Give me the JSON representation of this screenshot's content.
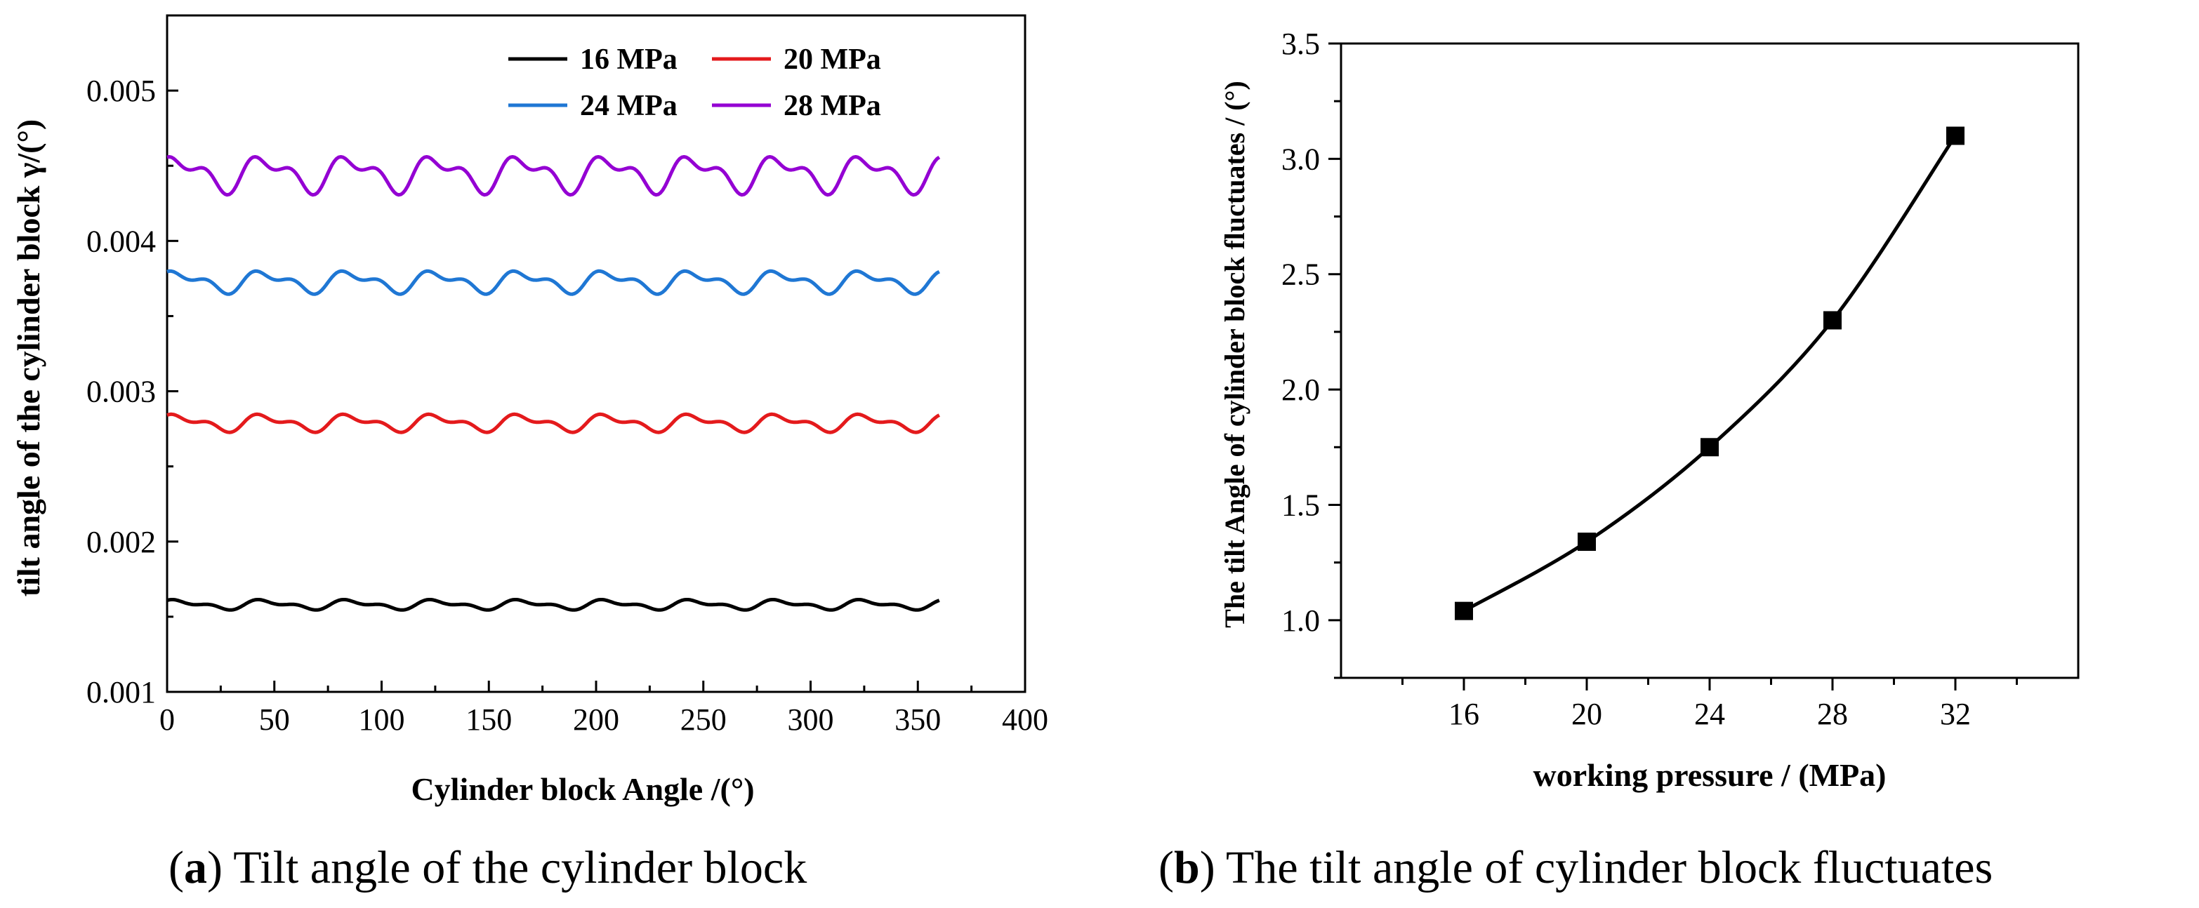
{
  "panel_a_caption": {
    "letter": "a",
    "text": "Tilt angle of the cylinder block"
  },
  "panel_b_caption": {
    "letter": "b",
    "text": "The tilt angle of cylinder block fluctuates"
  },
  "colors": {
    "axis": "#000000",
    "s16": "#000000",
    "s20": "#e41a1c",
    "s24": "#1f77d4",
    "s28": "#9400d3"
  },
  "chart_data": [
    {
      "type": "line",
      "xlabel": "Cylinder block Angle /(°)",
      "ylabel": "tilt angle of the cylinder block γ/(°)",
      "xlim": [
        0,
        400
      ],
      "ylim": [
        0.001,
        0.0055
      ],
      "xticks": [
        "0",
        "50",
        "100",
        "150",
        "200",
        "250",
        "300",
        "350",
        "400"
      ],
      "yticks": [
        "0.001",
        "0.002",
        "0.003",
        "0.004",
        "0.005"
      ],
      "legend_position": "top-right",
      "x_range": [
        0,
        360
      ],
      "period_deg": 40,
      "series": [
        {
          "name": "16 MPa",
          "color": "#000000",
          "mean": 0.00158,
          "amplitude": 4e-05
        },
        {
          "name": "20 MPa",
          "color": "#e41a1c",
          "mean": 0.00279,
          "amplitude": 7e-05
        },
        {
          "name": "24 MPa",
          "color": "#1f77d4",
          "mean": 0.00373,
          "amplitude": 9e-05
        },
        {
          "name": "28 MPa",
          "color": "#9400d3",
          "mean": 0.00445,
          "amplitude": 0.00015
        }
      ]
    },
    {
      "type": "line",
      "xlabel": "working pressure / (MPa)",
      "ylabel": "The tilt Angle of cylinder block fluctuates / (°)",
      "xlim": [
        12,
        36
      ],
      "ylim": [
        0.75,
        3.5
      ],
      "xticks": [
        "16",
        "20",
        "24",
        "28",
        "32"
      ],
      "yticks": [
        "1.0",
        "1.5",
        "2.0",
        "2.5",
        "3.0",
        "3.5"
      ],
      "x": [
        16,
        20,
        24,
        28,
        32
      ],
      "y": [
        1.04,
        1.34,
        1.75,
        2.3,
        3.1
      ],
      "marker": "square"
    }
  ]
}
